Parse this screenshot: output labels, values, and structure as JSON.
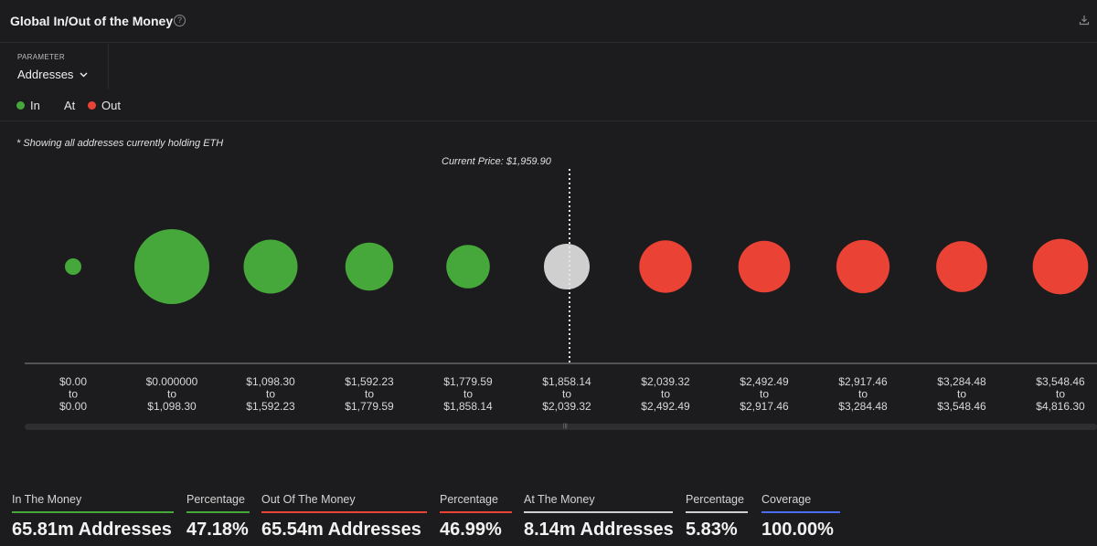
{
  "header": {
    "title": "Global In/Out of the Money",
    "help_icon": "?"
  },
  "parameter": {
    "label": "PARAMETER",
    "value": "Addresses"
  },
  "legend": [
    {
      "label": "In",
      "color": "#46a83a"
    },
    {
      "label": "At",
      "color": ""
    },
    {
      "label": "Out",
      "color": "#ea4335"
    }
  ],
  "note": "* Showing all addresses currently holding ETH",
  "current_price_label": "Current Price: $1,959.90",
  "chart_data": {
    "type": "bubble",
    "categories": [
      {
        "from": "$0.00",
        "to": "$0.00",
        "status": "in",
        "relative_size": 0.22
      },
      {
        "from": "$0.000000",
        "to": "$1,098.30",
        "status": "in",
        "relative_size": 1.0
      },
      {
        "from": "$1,098.30",
        "to": "$1,592.23",
        "status": "in",
        "relative_size": 0.72
      },
      {
        "from": "$1,592.23",
        "to": "$1,779.59",
        "status": "in",
        "relative_size": 0.64
      },
      {
        "from": "$1,779.59",
        "to": "$1,858.14",
        "status": "in",
        "relative_size": 0.58
      },
      {
        "from": "$1,858.14",
        "to": "$2,039.32",
        "status": "at",
        "relative_size": 0.61
      },
      {
        "from": "$2,039.32",
        "to": "$2,492.49",
        "status": "out",
        "relative_size": 0.7
      },
      {
        "from": "$2,492.49",
        "to": "$2,917.46",
        "status": "out",
        "relative_size": 0.69
      },
      {
        "from": "$2,917.46",
        "to": "$3,284.48",
        "status": "out",
        "relative_size": 0.71
      },
      {
        "from": "$3,284.48",
        "to": "$3,548.46",
        "status": "out",
        "relative_size": 0.68
      },
      {
        "from": "$3,548.46",
        "to": "$4,816.30",
        "status": "out",
        "relative_size": 0.74
      }
    ],
    "range_connector": "to",
    "current_price": 1959.9,
    "colors": {
      "in": "#46a83a",
      "at": "#cfcfcf",
      "out": "#ea4335"
    }
  },
  "scrollbar_grip": "|||",
  "stats": [
    {
      "label": "In The Money",
      "value": "65.81m Addresses",
      "color": "#46a83a"
    },
    {
      "label": "Percentage",
      "value": "47.18%",
      "color": "#46a83a"
    },
    {
      "label": "Out Of The Money",
      "value": "65.54m Addresses",
      "color": "#ea4335"
    },
    {
      "label": "Percentage",
      "value": "46.99%",
      "color": "#ea4335"
    },
    {
      "label": "At The Money",
      "value": "8.14m Addresses",
      "color": "#d0d0d0"
    },
    {
      "label": "Percentage",
      "value": "5.83%",
      "color": "#d0d0d0"
    },
    {
      "label": "Coverage",
      "value": "100.00%",
      "color": "#4a6cf0"
    }
  ]
}
